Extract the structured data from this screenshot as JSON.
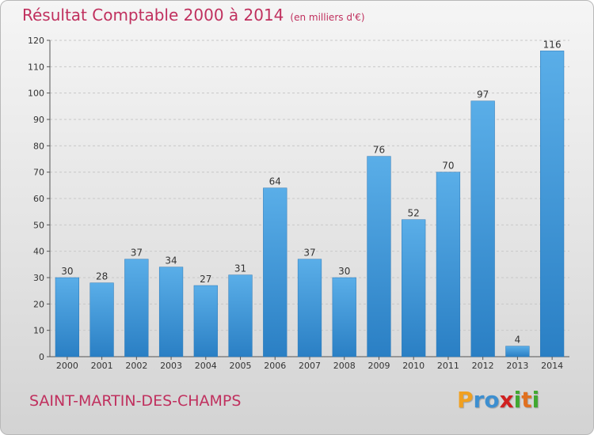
{
  "title": "Résultat Comptable 2000 à 2014",
  "subtitle": "(en milliers d'€)",
  "town": "SAINT-MARTIN-DES-CHAMPS",
  "brand": {
    "letters": [
      "P",
      "r",
      "o",
      "x",
      "i",
      "t",
      "i"
    ],
    "colors": [
      "#f0a020",
      "#3d8fd0",
      "#3d8fd0",
      "#d02020",
      "#40a830",
      "#e07020",
      "#40a830"
    ]
  },
  "colors": {
    "bar_light": "#5aaee8",
    "bar_dark": "#2a7fc4",
    "text_accent": "#c0305e"
  },
  "chart_data": {
    "type": "bar",
    "categories": [
      "2000",
      "2001",
      "2002",
      "2003",
      "2004",
      "2005",
      "2006",
      "2007",
      "2008",
      "2009",
      "2010",
      "2011",
      "2012",
      "2013",
      "2014"
    ],
    "values": [
      30,
      28,
      37,
      34,
      27,
      31,
      64,
      37,
      30,
      76,
      52,
      70,
      97,
      4,
      116
    ],
    "ylim": [
      0,
      120
    ],
    "yticks": [
      0,
      10,
      20,
      30,
      40,
      50,
      60,
      70,
      80,
      90,
      100,
      110,
      120
    ],
    "grid": true
  }
}
